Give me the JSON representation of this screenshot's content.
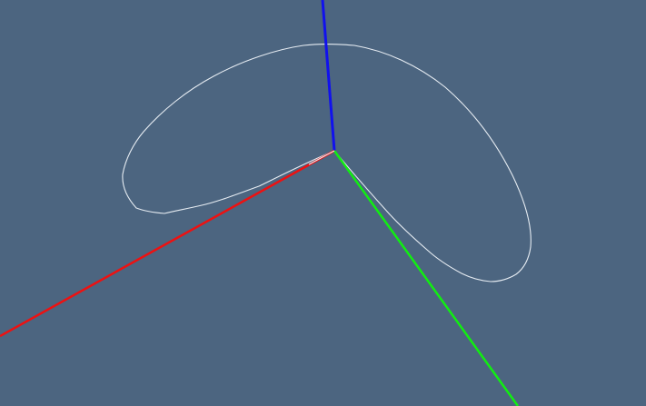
{
  "viewport": {
    "background_color": "#4c6580",
    "axes": {
      "x_axis_color": "#ee1111",
      "y_axis_color": "#11ee11",
      "z_axis_color": "#1111ee"
    },
    "curve": {
      "color": "#e6ecf2",
      "shape": "closed-loop"
    }
  }
}
